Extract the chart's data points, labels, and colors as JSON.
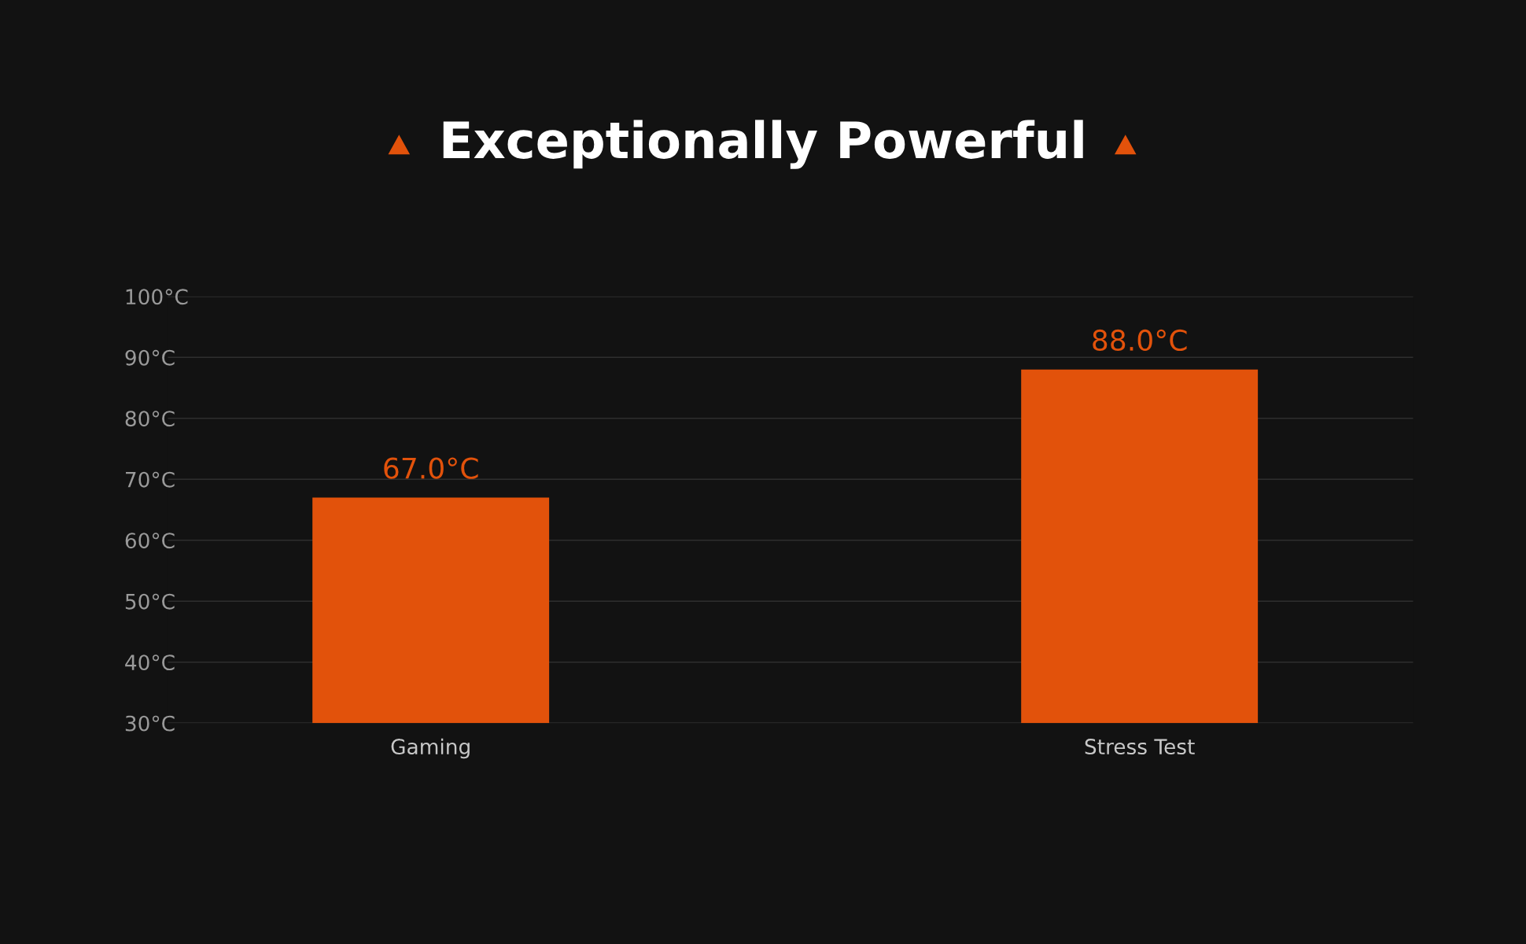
{
  "chart_data": {
    "type": "bar",
    "title": "Exceptionally Powerful",
    "categories": [
      "Gaming",
      "Stress Test"
    ],
    "values": [
      67.0,
      88.0
    ],
    "color": "#e2520b",
    "value_labels": [
      "67.0°C",
      "88.0°C"
    ],
    "ylim": [
      30,
      100
    ],
    "yticks": [
      {
        "value": 30,
        "label": "30°C"
      },
      {
        "value": 40,
        "label": "40°C"
      },
      {
        "value": 50,
        "label": "50°C"
      },
      {
        "value": 60,
        "label": "60°C"
      },
      {
        "value": 70,
        "label": "70°C"
      },
      {
        "value": 80,
        "label": "80°C"
      },
      {
        "value": 90,
        "label": "90°C"
      },
      {
        "value": 100,
        "label": "100°C"
      }
    ],
    "grid": "y",
    "legend": false
  }
}
